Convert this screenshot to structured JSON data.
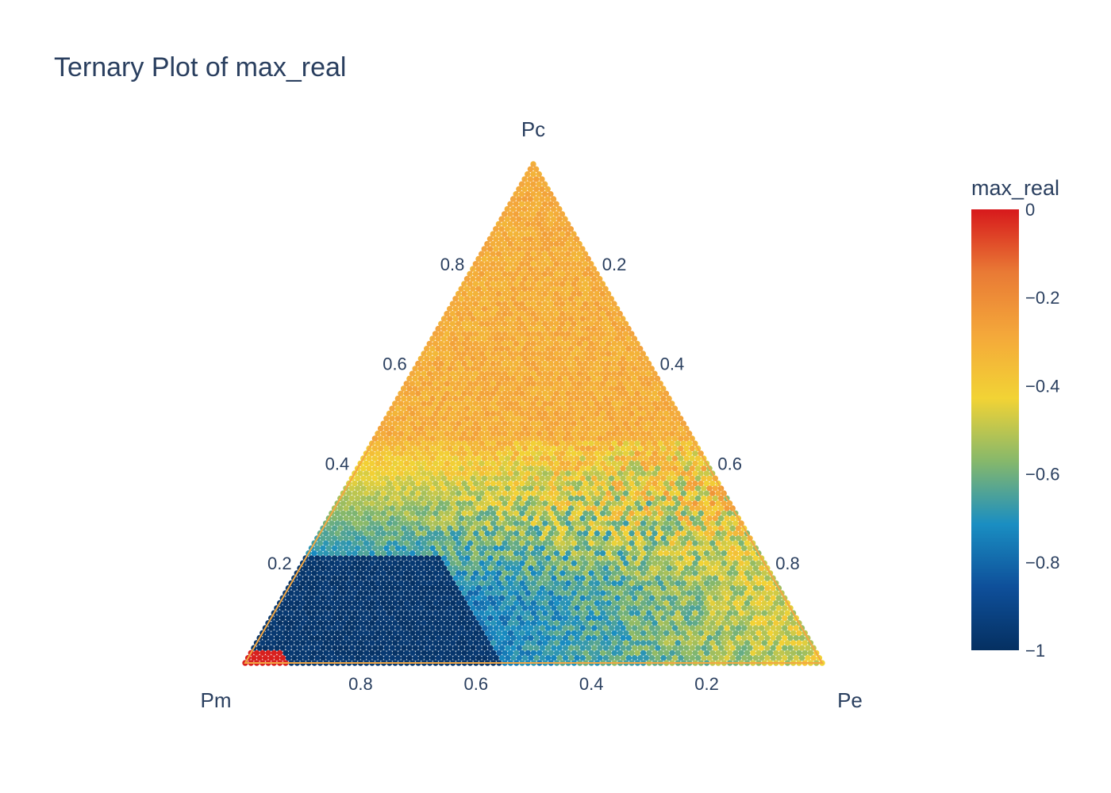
{
  "chart_data": {
    "type": "scatter",
    "subtype": "ternary",
    "title": "Ternary Plot of max_real",
    "axes": {
      "a": {
        "title": "Pc",
        "ticks": [
          "0.2",
          "0.4",
          "0.6",
          "0.8"
        ]
      },
      "b": {
        "title": "Pm",
        "ticks": [
          "0.2",
          "0.4",
          "0.6",
          "0.8"
        ]
      },
      "c": {
        "title": "Pe",
        "ticks": [
          "0.2",
          "0.4",
          "0.6",
          "0.8"
        ]
      }
    },
    "grid": false,
    "color_variable": "max_real",
    "colorbar": {
      "title": "max_real",
      "range": [
        -1,
        0
      ],
      "ticks": [
        {
          "value": 0,
          "label": "0"
        },
        {
          "value": -0.2,
          "label": "−0.2"
        },
        {
          "value": -0.4,
          "label": "−0.4"
        },
        {
          "value": -0.6,
          "label": "−0.6"
        },
        {
          "value": -0.8,
          "label": "−0.8"
        },
        {
          "value": -1,
          "label": "−1"
        }
      ],
      "colorscale": [
        "#053061",
        "#0e4f9a",
        "#1a8ec2",
        "#86b86b",
        "#f2d335",
        "#f4a83a",
        "#e97a35",
        "#d7191c"
      ]
    },
    "sampling": {
      "grid_step": 0.01,
      "description": "points on a regular grid over the simplex Pc + Pm + Pe = 1"
    },
    "value_regions": [
      {
        "region": "Pc > 0.45 (upper triangle)",
        "max_real_approx": [
          -0.35,
          -0.25
        ]
      },
      {
        "region": "Pc ≈ 0.25–0.45, mixed band",
        "max_real_approx": [
          -0.7,
          -0.45
        ]
      },
      {
        "region": "Pm high, Pc < 0.25",
        "max_real_approx": [
          -1,
          -0.9
        ]
      },
      {
        "region": "Pe high, Pc < 0.15",
        "max_real_approx": [
          -0.75,
          -0.4
        ]
      },
      {
        "region": "Pm > 0.92, Pc < 0.03 (corner)",
        "max_real_approx": [
          -0.02,
          0
        ]
      }
    ]
  }
}
